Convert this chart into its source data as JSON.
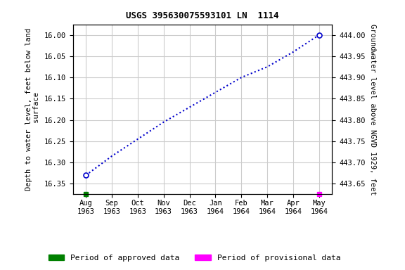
{
  "title": "USGS 395630075593101 LN  1114",
  "ylabel_left": "Depth to water level, feet below land\n surface",
  "ylabel_right": "Groundwater level above NGVD 1929, feet",
  "ylim_left": [
    16.375,
    15.975
  ],
  "ylim_right": [
    443.625,
    444.025
  ],
  "yticks_left": [
    16.0,
    16.05,
    16.1,
    16.15,
    16.2,
    16.25,
    16.3,
    16.35
  ],
  "yticks_right": [
    443.65,
    443.7,
    443.75,
    443.8,
    443.85,
    443.9,
    443.95,
    444.0
  ],
  "xtick_labels": [
    "Aug\n1963",
    "Sep\n1963",
    "Oct\n1963",
    "Nov\n1963",
    "Dec\n1963",
    "Jan\n1964",
    "Feb\n1964",
    "Mar\n1964",
    "Apr\n1964",
    "May\n1964"
  ],
  "x_data": [
    0,
    1,
    2,
    3,
    4,
    5,
    6,
    7,
    8,
    9
  ],
  "y_data_left": [
    16.33,
    16.285,
    16.245,
    16.205,
    16.17,
    16.135,
    16.1,
    16.075,
    16.04,
    16.0
  ],
  "line_color": "#0000cc",
  "line_style": "dotted",
  "marker_color": "#0000cc",
  "approved_color": "#008000",
  "provisional_color": "#ff00ff",
  "background_color": "#ffffff",
  "grid_color": "#cccccc",
  "title_fontsize": 9,
  "label_fontsize": 7.5,
  "tick_fontsize": 7.5,
  "legend_fontsize": 8
}
